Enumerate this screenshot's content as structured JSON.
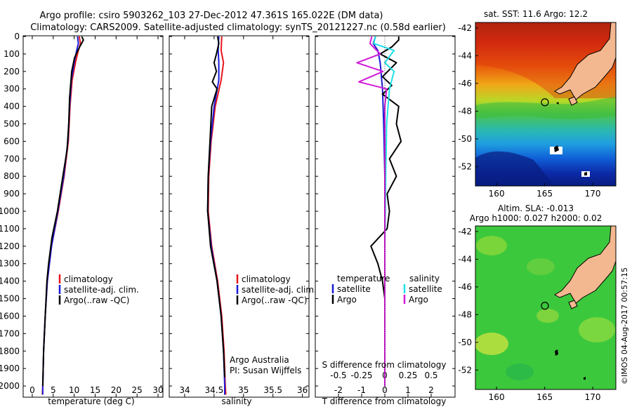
{
  "header": {
    "line1": "Argo profile: csiro 5903262_103 27-Dec-2012 47.361S 165.022E (DM data)",
    "line2": "Climatology: CARS2009. Satellite-adjusted climatology: synTS_20121227.nc (0.58d earlier)"
  },
  "credits": {
    "institution": "Argo Australia",
    "pi": "PI: Susan Wijffels",
    "stamp": "©IMOS 04-Aug-2017 00:57:15"
  },
  "colors": {
    "climatology": "#e8141c",
    "satellite": "#1a1ad8",
    "argo": "#000000",
    "salinity_satellite": "#1fe0e8",
    "salinity_argo": "#d21ad8",
    "land": "#f4b890"
  },
  "chart_data": [
    {
      "type": "line",
      "id": "temperature",
      "xlabel": "temperature (deg C)",
      "ylabel": "",
      "xlim": [
        -2,
        31
      ],
      "ylim": [
        2060,
        0
      ],
      "xticks": [
        0,
        5,
        10,
        15,
        20,
        25,
        30
      ],
      "yticks": [
        0,
        100,
        200,
        300,
        400,
        500,
        600,
        700,
        800,
        900,
        1000,
        1100,
        1200,
        1300,
        1400,
        1500,
        1600,
        1700,
        1800,
        1900,
        2000
      ],
      "legend": [
        "climatology",
        "satellite-adj. clim.",
        "Argo(..raw -QC)"
      ],
      "series": [
        {
          "name": "climatology",
          "points": [
            [
              11.2,
              0
            ],
            [
              11.5,
              40
            ],
            [
              11.0,
              80
            ],
            [
              10.3,
              150
            ],
            [
              9.5,
              250
            ],
            [
              9.0,
              400
            ],
            [
              8.6,
              600
            ],
            [
              7.6,
              800
            ],
            [
              6.2,
              1000
            ],
            [
              4.6,
              1200
            ],
            [
              3.6,
              1400
            ],
            [
              3.1,
              1600
            ],
            [
              2.7,
              1800
            ],
            [
              2.5,
              2000
            ],
            [
              2.4,
              2050
            ]
          ]
        },
        {
          "name": "satellite-adj. clim.",
          "points": [
            [
              10.8,
              0
            ],
            [
              11.0,
              40
            ],
            [
              10.6,
              80
            ],
            [
              10.0,
              150
            ],
            [
              9.3,
              250
            ],
            [
              8.9,
              400
            ],
            [
              8.5,
              600
            ],
            [
              7.5,
              800
            ],
            [
              6.1,
              1000
            ],
            [
              4.6,
              1200
            ],
            [
              3.6,
              1400
            ],
            [
              3.1,
              1600
            ],
            [
              2.7,
              1800
            ],
            [
              2.5,
              2000
            ],
            [
              2.5,
              2050
            ]
          ]
        },
        {
          "name": "Argo(..raw -QC)",
          "points": [
            [
              11.8,
              0
            ],
            [
              12.2,
              20
            ],
            [
              11.3,
              60
            ],
            [
              10.1,
              120
            ],
            [
              9.4,
              200
            ],
            [
              8.9,
              350
            ],
            [
              8.7,
              500
            ],
            [
              8.3,
              650
            ],
            [
              7.3,
              800
            ],
            [
              6.0,
              1000
            ],
            [
              4.7,
              1150
            ],
            [
              3.9,
              1300
            ],
            [
              3.5,
              1400
            ],
            [
              3.1,
              1600
            ],
            [
              2.7,
              1800
            ],
            [
              2.5,
              2000
            ]
          ]
        }
      ]
    },
    {
      "type": "line",
      "id": "salinity",
      "xlabel": "salinity",
      "ylabel": "",
      "xlim": [
        33.75,
        36.1
      ],
      "ylim": [
        2060,
        0
      ],
      "xticks": [
        34,
        34.5,
        35,
        35.5,
        36
      ],
      "legend": [
        "climatology",
        "satellite-adj. clim.",
        "Argo(..raw -QC)"
      ],
      "series": [
        {
          "name": "climatology",
          "points": [
            [
              34.63,
              0
            ],
            [
              34.62,
              80
            ],
            [
              34.66,
              150
            ],
            [
              34.62,
              250
            ],
            [
              34.52,
              400
            ],
            [
              34.45,
              600
            ],
            [
              34.41,
              800
            ],
            [
              34.4,
              1000
            ],
            [
              34.46,
              1200
            ],
            [
              34.56,
              1400
            ],
            [
              34.63,
              1600
            ],
            [
              34.67,
              1800
            ],
            [
              34.69,
              2000
            ],
            [
              34.7,
              2050
            ]
          ]
        },
        {
          "name": "satellite-adj. clim.",
          "points": [
            [
              34.58,
              0
            ],
            [
              34.57,
              80
            ],
            [
              34.58,
              150
            ],
            [
              34.58,
              250
            ],
            [
              34.5,
              400
            ],
            [
              34.44,
              600
            ],
            [
              34.4,
              800
            ],
            [
              34.39,
              1000
            ],
            [
              34.45,
              1200
            ],
            [
              34.55,
              1400
            ],
            [
              34.62,
              1600
            ],
            [
              34.66,
              1800
            ],
            [
              34.68,
              2000
            ],
            [
              34.68,
              2050
            ]
          ]
        },
        {
          "name": "Argo(..raw -QC)",
          "points": [
            [
              34.56,
              0
            ],
            [
              34.58,
              40
            ],
            [
              34.54,
              100
            ],
            [
              34.5,
              150
            ],
            [
              34.54,
              200
            ],
            [
              34.47,
              260
            ],
            [
              34.55,
              300
            ],
            [
              34.46,
              400
            ],
            [
              34.43,
              600
            ],
            [
              34.4,
              800
            ],
            [
              34.39,
              1000
            ],
            [
              34.44,
              1200
            ],
            [
              34.55,
              1400
            ],
            [
              34.62,
              1600
            ],
            [
              34.66,
              1800
            ],
            [
              34.68,
              1950
            ]
          ]
        }
      ]
    },
    {
      "type": "line",
      "id": "difference",
      "xlabel": "T difference from climatology",
      "xlabel2": "S difference from climatology",
      "xlim": [
        -2.8,
        2.8
      ],
      "ylim": [
        2060,
        0
      ],
      "xticks": [
        -2,
        -1,
        0,
        1,
        2
      ],
      "xticks_top": [
        -0.5,
        -0.25,
        0,
        0.25,
        0.5
      ],
      "legend_titles": [
        "temperature",
        "salinity"
      ],
      "legend": [
        "satellite",
        "Argo",
        "satellite",
        "Argo"
      ],
      "series": [
        {
          "name": "temperature satellite",
          "points": [
            [
              -0.4,
              0
            ],
            [
              -0.5,
              40
            ],
            [
              -0.3,
              80
            ],
            [
              -0.2,
              150
            ],
            [
              -0.1,
              300
            ],
            [
              -0.05,
              500
            ],
            [
              0,
              800
            ],
            [
              0,
              1200
            ],
            [
              0,
              2000
            ]
          ]
        },
        {
          "name": "temperature Argo",
          "points": [
            [
              0.6,
              0
            ],
            [
              0.6,
              20
            ],
            [
              0.3,
              60
            ],
            [
              -0.2,
              100
            ],
            [
              0.5,
              150
            ],
            [
              -0.1,
              230
            ],
            [
              0.3,
              280
            ],
            [
              -0.1,
              330
            ],
            [
              0.6,
              400
            ],
            [
              0.5,
              500
            ],
            [
              0.7,
              600
            ],
            [
              0.2,
              700
            ],
            [
              0.5,
              800
            ],
            [
              0.1,
              900
            ],
            [
              0.2,
              1000
            ],
            [
              0.1,
              1100
            ],
            [
              -0.6,
              1200
            ],
            [
              -0.3,
              1300
            ],
            [
              -0.1,
              1400
            ],
            [
              0,
              1500
            ],
            [
              0,
              1600
            ],
            [
              0,
              1800
            ],
            [
              0,
              2000
            ]
          ]
        },
        {
          "name": "salinity satellite",
          "points": [
            [
              -0.1,
              0
            ],
            [
              -0.12,
              40
            ],
            [
              0.1,
              80
            ],
            [
              0.0,
              150
            ],
            [
              0.1,
              200
            ],
            [
              0.05,
              300
            ],
            [
              0.02,
              500
            ],
            [
              0.01,
              800
            ],
            [
              0.0,
              1200
            ],
            [
              0.0,
              2000
            ]
          ]
        },
        {
          "name": "salinity Argo",
          "points": [
            [
              -0.14,
              0
            ],
            [
              -0.16,
              40
            ],
            [
              -0.05,
              100
            ],
            [
              -0.3,
              150
            ],
            [
              -0.02,
              200
            ],
            [
              -0.28,
              260
            ],
            [
              0.02,
              300
            ],
            [
              0.0,
              400
            ],
            [
              0.0,
              700
            ],
            [
              0.0,
              1200
            ],
            [
              0.0,
              2000
            ]
          ]
        }
      ]
    },
    {
      "type": "heatmap",
      "id": "sst_map",
      "title": "sat. SST: 11.6  Argo: 12.2",
      "xlim": [
        157.8,
        172.4
      ],
      "ylim": [
        -53.4,
        -41.6
      ],
      "xticks": [
        160,
        165,
        170
      ],
      "yticks": [
        -42,
        -44,
        -46,
        -48,
        -50,
        -52
      ],
      "profile_location": [
        165.022,
        -47.361
      ]
    },
    {
      "type": "heatmap",
      "id": "sla_map",
      "title": "Altim. SLA: -0.013",
      "subtitle": "Argo h1000: 0.027 h2000: 0.02",
      "xlim": [
        157.8,
        172.4
      ],
      "ylim": [
        -53.4,
        -41.6
      ],
      "xticks": [
        160,
        165,
        170
      ],
      "yticks": [
        -42,
        -44,
        -46,
        -48,
        -50,
        -52
      ],
      "profile_location": [
        165.022,
        -47.361
      ]
    }
  ]
}
